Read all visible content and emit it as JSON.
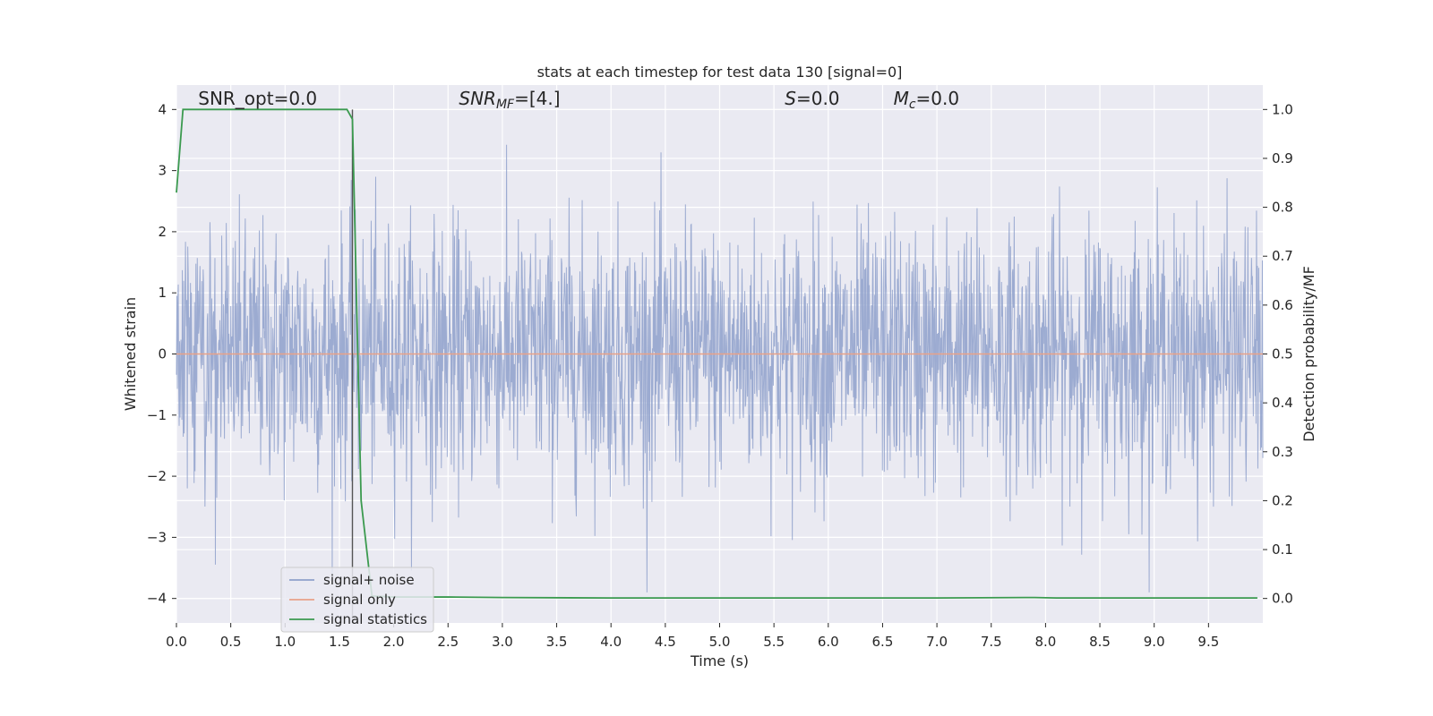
{
  "chart_data": {
    "type": "line",
    "title": "stats at each timestep for test data 130 [signal=0]",
    "xlabel": "Time (s)",
    "ylabel_left": "Whitened strain",
    "ylabel_right": "Detection probability/MF",
    "xlim": [
      0,
      10
    ],
    "ylim_left": [
      -4.4,
      4.4
    ],
    "ylim_right": [
      -0.05,
      1.05
    ],
    "x_ticks": [
      "0.0",
      "0.5",
      "1.0",
      "1.5",
      "2.0",
      "2.5",
      "3.0",
      "3.5",
      "4.0",
      "4.5",
      "5.0",
      "5.5",
      "6.0",
      "6.5",
      "7.0",
      "7.5",
      "8.0",
      "8.5",
      "9.0",
      "9.5"
    ],
    "y_ticks_left": [
      "4",
      "3",
      "2",
      "1",
      "0",
      "−1",
      "−2",
      "−3",
      "−4"
    ],
    "y_ticks_right": [
      "1.0",
      "0.9",
      "0.8",
      "0.7",
      "0.6",
      "0.5",
      "0.4",
      "0.3",
      "0.2",
      "0.1",
      "0.0"
    ],
    "grid": true,
    "legend_position": "lower-left",
    "annotations": [
      {
        "prefix": "SNR_opt",
        "italic_sub": "",
        "suffix": "=0.0",
        "x": 0.2,
        "y_right": 1.01
      },
      {
        "prefix": "SNR",
        "italic_sub": "MF",
        "suffix": "=[4.]",
        "x": 2.6,
        "y_right": 1.01
      },
      {
        "prefix": "S",
        "italic_sub": "",
        "suffix": "=0.0",
        "x": 5.6,
        "y_right": 1.01
      },
      {
        "prefix": "M",
        "italic_sub": "c",
        "suffix": "=0.0",
        "x": 6.6,
        "y_right": 1.01
      }
    ],
    "series": [
      {
        "name": "signal+ noise",
        "color": "#8ea0cb",
        "axis": "left",
        "style": "noise",
        "amplitude_sd": 1.1,
        "range": [
          -3.9,
          4.05
        ]
      },
      {
        "name": "signal only",
        "color": "#e8a188",
        "axis": "left",
        "x": [
          0,
          10
        ],
        "y": [
          0,
          0
        ]
      },
      {
        "name": "signal statistics",
        "color": "#3b9a4f",
        "axis": "right",
        "x": [
          0.0,
          0.06,
          0.1,
          0.2,
          0.5,
          1.0,
          1.5,
          1.57,
          1.62,
          1.7,
          1.8,
          2.0,
          2.5,
          3.0,
          4.0,
          5.0,
          6.0,
          7.0,
          7.9,
          8.1,
          9.0,
          9.5,
          9.95
        ],
        "y": [
          0.83,
          1.0,
          1.0,
          1.0,
          1.0,
          1.0,
          1.0,
          1.0,
          0.98,
          0.2,
          0.005,
          0.003,
          0.003,
          0.002,
          0.001,
          0.001,
          0.001,
          0.001,
          0.002,
          0.001,
          0.001,
          0.001,
          0.001
        ]
      }
    ],
    "vline": {
      "x": 1.62,
      "color": "#555555"
    }
  }
}
